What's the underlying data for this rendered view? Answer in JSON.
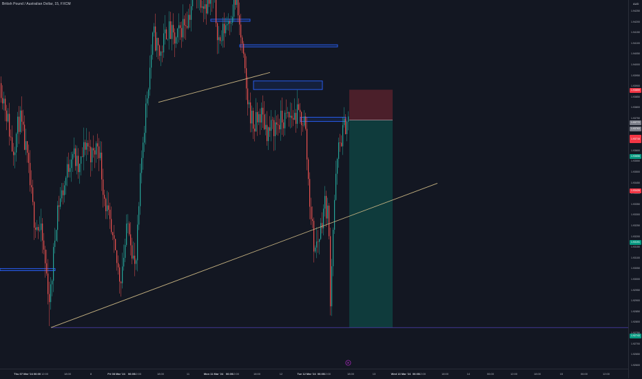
{
  "symbol": {
    "title": "British Pound / Australian Dollar, 15, FXCM",
    "currency": "AUD"
  },
  "colors": {
    "background": "#131722",
    "bull": "#26a69a",
    "bear": "#ef5350",
    "trendline": "#c8b482",
    "zone_border": "#2962ff",
    "zone_fill": "rgba(41,98,255,0.12)",
    "stop_fill": "rgba(242,54,69,0.25)",
    "target_fill": "rgba(8,153,129,0.28)",
    "stop_badge": "#f23645",
    "target_badge": "#089981",
    "current_badge": "#787b86"
  },
  "price_axis": {
    "ticks": [
      "1.94250",
      "1.94200",
      "1.94150",
      "1.94100",
      "1.94050",
      "1.94000",
      "1.93950",
      "1.93900",
      "1.93850",
      "1.93800",
      "1.93750",
      "1.93700",
      "1.93650",
      "1.93600",
      "1.93550",
      "1.93500",
      "1.93450",
      "1.93400",
      "1.93350",
      "1.93300",
      "1.93250",
      "1.93200",
      "1.93150",
      "1.93100",
      "1.93050",
      "1.93000",
      "1.92950",
      "1.92900",
      "1.92850",
      "1.92800",
      "1.92750",
      "1.92700",
      "1.92650",
      "1.92600"
    ],
    "badges": {
      "stop": "1.93859",
      "current": "1.93772",
      "current_sub": "1.93763",
      "entry": "1.93716",
      "target_mid": "1.93656",
      "alert": "1.93426",
      "green": "1.93191",
      "target": "1.92743"
    }
  },
  "time_axis": {
    "labels": [
      {
        "text": "Thu 07 Mar '24",
        "bold": true
      },
      {
        "text": "06:00",
        "bold": true
      },
      {
        "text": "12:00",
        "bold": false
      },
      {
        "text": "18:00",
        "bold": false
      },
      {
        "text": "8",
        "bold": false
      },
      {
        "text": "Fri 08 Mar '24",
        "bold": true
      },
      {
        "text": "06:00",
        "bold": true
      },
      {
        "text": "12:00",
        "bold": false
      },
      {
        "text": "18:00",
        "bold": false
      },
      {
        "text": "11",
        "bold": false
      },
      {
        "text": "Mon 11 Mar '24",
        "bold": true
      },
      {
        "text": "06:00",
        "bold": true
      },
      {
        "text": "12:00",
        "bold": false
      },
      {
        "text": "18:00",
        "bold": false
      },
      {
        "text": "12",
        "bold": false
      },
      {
        "text": "Tue 12 Mar '24",
        "bold": true
      },
      {
        "text": "06:00",
        "bold": true
      },
      {
        "text": "12:00",
        "bold": false
      },
      {
        "text": "18:00",
        "bold": false
      },
      {
        "text": "13",
        "bold": false
      },
      {
        "text": "Wed 13 Mar '24",
        "bold": true
      },
      {
        "text": "06:00",
        "bold": true
      },
      {
        "text": "12:00",
        "bold": false
      },
      {
        "text": "18:00",
        "bold": false
      },
      {
        "text": "14",
        "bold": false
      },
      {
        "text": "06:00",
        "bold": false
      },
      {
        "text": "12:00",
        "bold": false
      },
      {
        "text": "18:00",
        "bold": false
      },
      {
        "text": "15",
        "bold": false
      },
      {
        "text": "06:00",
        "bold": false
      },
      {
        "text": "12:00",
        "bold": false
      }
    ]
  },
  "icons": {
    "replay": "replay-icon"
  },
  "chart_data": {
    "type": "candlestick",
    "timeframe": "15",
    "price_range": [
      1.9255,
      1.9428
    ],
    "price_scale": "linear",
    "grid": false,
    "close_path": [
      [
        0,
        1.9389
      ],
      [
        8,
        1.9377
      ],
      [
        18,
        1.9357
      ],
      [
        28,
        1.9373
      ],
      [
        38,
        1.9355
      ],
      [
        48,
        1.9327
      ],
      [
        60,
        1.9317
      ],
      [
        72,
        1.9286
      ],
      [
        82,
        1.933
      ],
      [
        92,
        1.934
      ],
      [
        104,
        1.9358
      ],
      [
        114,
        1.9347
      ],
      [
        124,
        1.9362
      ],
      [
        134,
        1.9354
      ],
      [
        142,
        1.9362
      ],
      [
        150,
        1.9338
      ],
      [
        162,
        1.9315
      ],
      [
        174,
        1.9297
      ],
      [
        186,
        1.9325
      ],
      [
        196,
        1.9299
      ],
      [
        206,
        1.936
      ],
      [
        214,
        1.9387
      ],
      [
        222,
        1.9412
      ],
      [
        232,
        1.9402
      ],
      [
        242,
        1.9415
      ],
      [
        254,
        1.9408
      ],
      [
        264,
        1.9416
      ],
      [
        274,
        1.9421
      ],
      [
        282,
        1.9434
      ],
      [
        290,
        1.943
      ],
      [
        300,
        1.9426
      ],
      [
        310,
        1.9427
      ],
      [
        318,
        1.9407
      ],
      [
        326,
        1.9416
      ],
      [
        334,
        1.9421
      ],
      [
        342,
        1.9428
      ],
      [
        350,
        1.9408
      ],
      [
        358,
        1.9382
      ],
      [
        368,
        1.9368
      ],
      [
        378,
        1.9375
      ],
      [
        388,
        1.9366
      ],
      [
        398,
        1.9369
      ],
      [
        408,
        1.9371
      ],
      [
        420,
        1.9373
      ],
      [
        432,
        1.9374
      ],
      [
        442,
        1.9371
      ],
      [
        448,
        1.9338
      ],
      [
        456,
        1.931
      ],
      [
        464,
        1.9319
      ],
      [
        470,
        1.9333
      ],
      [
        476,
        1.9328
      ],
      [
        479,
        1.9289
      ],
      [
        484,
        1.933
      ],
      [
        490,
        1.9356
      ],
      [
        496,
        1.9365
      ],
      [
        502,
        1.9371
      ],
      [
        506,
        1.9373
      ]
    ],
    "zones": [
      {
        "price_top": 1.9302,
        "price_bottom": 1.9301
      },
      {
        "price_top": 1.9419,
        "price_bottom": 1.9418
      },
      {
        "price_top": 1.9407,
        "price_bottom": 1.9406
      },
      {
        "price_top": 1.939,
        "price_bottom": 1.9386
      },
      {
        "price_top": 1.9373,
        "price_bottom": 1.9371
      }
    ],
    "trendlines": [
      {
        "p1": 1.92743,
        "p2": 1.9342
      },
      {
        "p1": 1.938,
        "p2": 1.9394
      }
    ],
    "position": {
      "type": "short",
      "entry": 1.93716,
      "stop": 1.93859,
      "target": 1.92743
    }
  }
}
